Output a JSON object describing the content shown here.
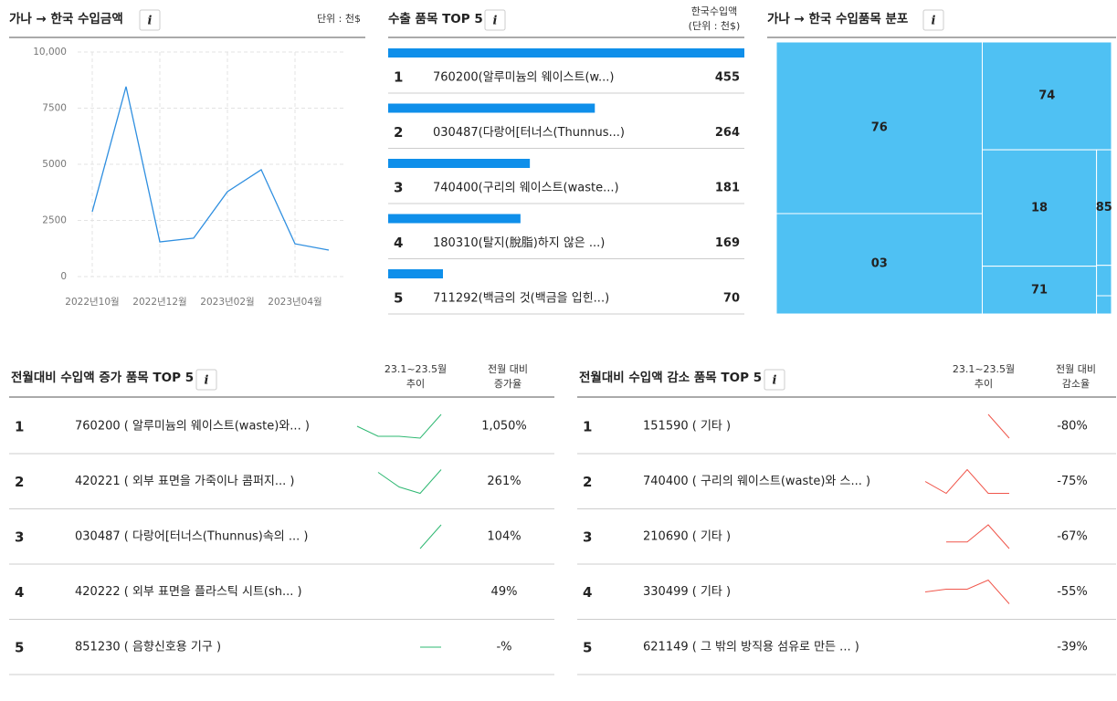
{
  "chart_data": [
    {
      "type": "line",
      "title": "가나 → 한국  수입금액",
      "unit": "단위 : 천$",
      "categories": [
        "2022년10월",
        null,
        "2022년12월",
        null,
        "2023년02월",
        null,
        "2023년04월",
        null
      ],
      "values": [
        2890,
        8460,
        1545,
        1710,
        3780,
        4760,
        1460,
        1180
      ],
      "color": "#2f8fe0",
      "ylim": [
        0,
        10000
      ],
      "yticks": [
        0,
        2500,
        5000,
        7500,
        {
          "value": 10000,
          "label": "10,000"
        }
      ],
      "grid": true
    },
    {
      "type": "hbar",
      "title": "수출 품목 TOP 5",
      "value_header": [
        "한국수입액",
        "(단위 : 천$)"
      ],
      "ranks": [
        1,
        2,
        3,
        4,
        5
      ],
      "categories": [
        "760200(알루미늄의 웨이스트(w...)",
        "030487(다랑어[터너스(Thunnus...)",
        "740400(구리의 웨이스트(waste...)",
        "180310(탈지(脫脂)하지 않은 ...)",
        "711292(백금의 것(백금을 입힌...)"
      ],
      "values": [
        455,
        264,
        181,
        169,
        70
      ],
      "xlim": [
        0,
        455
      ],
      "color": "#0f8fea"
    },
    {
      "type": "treemap",
      "title": "가나 → 한국  수입품목 분포",
      "categories": [
        "76",
        "03",
        "74",
        "18",
        "71",
        "85",
        null,
        null
      ],
      "values": [
        38.8,
        22.7,
        15.3,
        14.6,
        6.0,
        1.9,
        0.5,
        0.3
      ],
      "color": "#4fc1f3"
    },
    {
      "type": "sparkline-table",
      "title": "전월대비 수입액 증가 품목 TOP 5",
      "trend_header": [
        "23.1~23.5월",
        "추이"
      ],
      "value_header": [
        "전월 대비",
        "증가율"
      ],
      "ranks": [
        1,
        2,
        3,
        4,
        5
      ],
      "categories": [
        "760200 ( 알루미늄의 웨이스트(waste)와... )",
        "420221 ( 외부 표면을 가죽이나 콤퍼지... )",
        "030487 ( 다랑어[터너스(Thunnus)속의 ... )",
        "420222 ( 외부 표면을 플라스틱 시트(sh... )",
        "851230 ( 음향신호용 기구 )"
      ],
      "series": [
        {
          "values": [
            13,
            2,
            2,
            0,
            26
          ]
        },
        {
          "values": [
            null,
            23,
            7,
            0,
            26
          ]
        },
        {
          "values": [
            null,
            null,
            null,
            0,
            25
          ]
        },
        {
          "values": [
            null,
            null,
            null,
            null,
            null
          ]
        },
        {
          "values": [
            null,
            null,
            null,
            0,
            0
          ]
        }
      ],
      "color": "#2eb872",
      "values": [
        1050,
        261,
        104,
        49,
        null
      ],
      "value_labels": [
        "1,050%",
        "261%",
        "104%",
        "49%",
        "-%"
      ]
    },
    {
      "type": "sparkline-table",
      "title": "전월대비 수입액 감소 품목 TOP 5",
      "trend_header": [
        "23.1~23.5월",
        "추이"
      ],
      "value_header": [
        "전월 대비",
        "감소율"
      ],
      "ranks": [
        1,
        2,
        3,
        4,
        5
      ],
      "categories": [
        "151590 ( 기타 )",
        "740400 ( 구리의 웨이스트(waste)와 스... )",
        "210690 ( 기타 )",
        "330499 ( 기타 )",
        "621149 ( 그 밖의 방직용 섬유로 만든 ... )"
      ],
      "series": [
        {
          "values": [
            null,
            null,
            null,
            25,
            0
          ]
        },
        {
          "values": [
            13,
            0,
            26,
            0,
            0
          ]
        },
        {
          "values": [
            null,
            7,
            7,
            25,
            0
          ]
        },
        {
          "values": [
            13,
            16,
            16,
            26,
            0
          ]
        },
        {
          "values": [
            null,
            null,
            null,
            null,
            null
          ]
        }
      ],
      "color": "#f0564b",
      "values": [
        -80,
        -75,
        -67,
        -55,
        -39
      ],
      "value_labels": [
        "-80%",
        "-75%",
        "-67%",
        "-55%",
        "-39%"
      ]
    }
  ]
}
